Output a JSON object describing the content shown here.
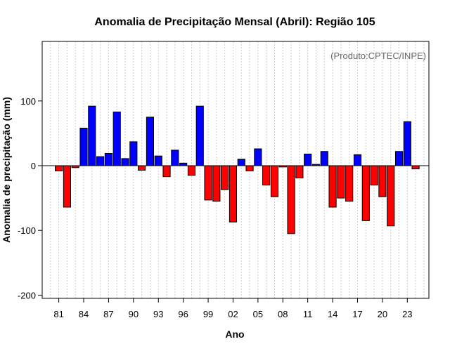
{
  "chart_data": {
    "type": "bar",
    "title": "Anomalia de Precipitação Mensal (Abril): Região 105",
    "xlabel": "Ano",
    "ylabel": "Anomalia de precipitação (mm)",
    "credit": "(Produto:CPTEC/INPE)",
    "ylim": [
      -205,
      192
    ],
    "xlim": [
      1979,
      2025.6
    ],
    "yticks": [
      100,
      0,
      -100,
      -200
    ],
    "xticks": [
      {
        "year": 1981,
        "label": "81"
      },
      {
        "year": 1984,
        "label": "84"
      },
      {
        "year": 1987,
        "label": "87"
      },
      {
        "year": 1990,
        "label": "90"
      },
      {
        "year": 1993,
        "label": "93"
      },
      {
        "year": 1996,
        "label": "96"
      },
      {
        "year": 1999,
        "label": "99"
      },
      {
        "year": 2002,
        "label": "02"
      },
      {
        "year": 2005,
        "label": "05"
      },
      {
        "year": 2008,
        "label": "08"
      },
      {
        "year": 2011,
        "label": "11"
      },
      {
        "year": 2014,
        "label": "14"
      },
      {
        "year": 2017,
        "label": "17"
      },
      {
        "year": 2020,
        "label": "20"
      },
      {
        "year": 2023,
        "label": "23"
      }
    ],
    "grid": "vertical-dotted",
    "colors": {
      "positive": "#0000ff",
      "negative": "#ff0000",
      "grid": "#cccccc"
    },
    "x": [
      1981,
      1982,
      1983,
      1984,
      1985,
      1986,
      1987,
      1988,
      1989,
      1990,
      1991,
      1992,
      1993,
      1994,
      1995,
      1996,
      1997,
      1998,
      1999,
      2000,
      2001,
      2002,
      2003,
      2004,
      2005,
      2006,
      2007,
      2008,
      2009,
      2010,
      2011,
      2012,
      2013,
      2014,
      2015,
      2016,
      2017,
      2018,
      2019,
      2020,
      2021,
      2022,
      2023,
      2024
    ],
    "values": [
      -8,
      -64,
      -3,
      58,
      92,
      14,
      19,
      83,
      11,
      37,
      -7,
      75,
      15,
      -17,
      24,
      4,
      -15,
      92,
      -53,
      -55,
      -37,
      -87,
      10,
      -8,
      26,
      -30,
      -48,
      -2,
      -105,
      -19,
      18,
      2,
      22,
      -64,
      -50,
      -55,
      17,
      -85,
      -30,
      -48,
      -93,
      22,
      68,
      -5
    ]
  }
}
